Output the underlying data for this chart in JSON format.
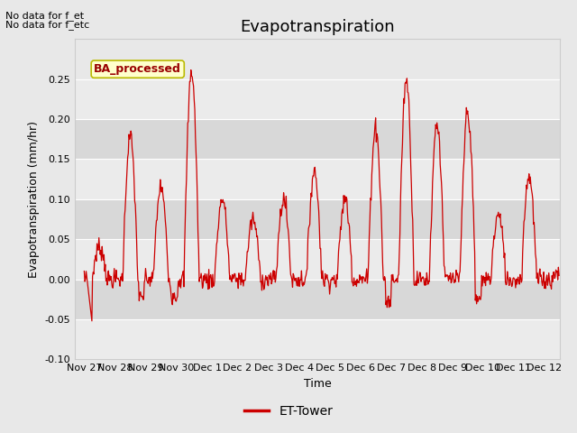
{
  "title": "Evapotranspiration",
  "ylabel": "Evapotranspiration (mm/hr)",
  "xlabel": "Time",
  "legend_label": "ET-Tower",
  "annotation_text1": "No data for f_et",
  "annotation_text2": "No data for f_etc",
  "box_label": "BA_processed",
  "ylim": [
    -0.1,
    0.3
  ],
  "yticks": [
    -0.1,
    -0.05,
    0.0,
    0.05,
    0.1,
    0.15,
    0.2,
    0.25
  ],
  "line_color": "#cc0000",
  "legend_line_color": "#cc0000",
  "bg_color": "#e8e8e8",
  "band_light": "#ebebeb",
  "band_dark": "#d8d8d8",
  "title_fontsize": 13,
  "label_fontsize": 9,
  "tick_fontsize": 8,
  "annotation_fontsize": 8,
  "day_labels": [
    [
      0,
      "Nov 27"
    ],
    [
      1,
      "Nov 28"
    ],
    [
      2,
      "Nov 29"
    ],
    [
      3,
      "Nov 30"
    ],
    [
      4,
      "Dec 1"
    ],
    [
      5,
      "Dec 2"
    ],
    [
      6,
      "Dec 3"
    ],
    [
      7,
      "Dec 4"
    ],
    [
      8,
      "Dec 5"
    ],
    [
      9,
      "Dec 6"
    ],
    [
      10,
      "Dec 7"
    ],
    [
      11,
      "Dec 8"
    ],
    [
      12,
      "Dec 9"
    ],
    [
      13,
      "Dec 10"
    ],
    [
      14,
      "Dec 11"
    ],
    [
      15,
      "Dec 12"
    ]
  ]
}
